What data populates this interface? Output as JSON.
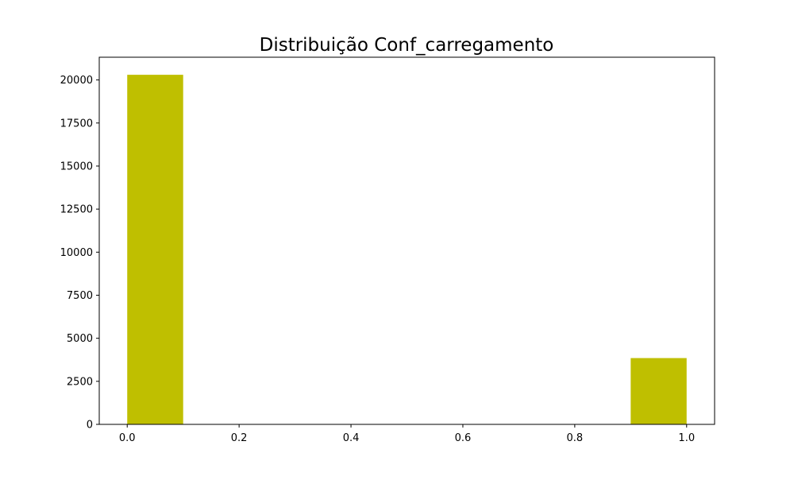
{
  "chart_data": {
    "type": "bar",
    "title": "Distribuição Conf_carregamento",
    "xlabel": "",
    "ylabel": "",
    "bars": [
      {
        "x_start": 0.0,
        "x_end": 0.1,
        "value": 20300
      },
      {
        "x_start": 0.1,
        "x_end": 0.2,
        "value": 0
      },
      {
        "x_start": 0.2,
        "x_end": 0.3,
        "value": 0
      },
      {
        "x_start": 0.3,
        "x_end": 0.4,
        "value": 0
      },
      {
        "x_start": 0.4,
        "x_end": 0.5,
        "value": 0
      },
      {
        "x_start": 0.5,
        "x_end": 0.6,
        "value": 0
      },
      {
        "x_start": 0.6,
        "x_end": 0.7,
        "value": 0
      },
      {
        "x_start": 0.7,
        "x_end": 0.8,
        "value": 0
      },
      {
        "x_start": 0.8,
        "x_end": 0.9,
        "value": 0
      },
      {
        "x_start": 0.9,
        "x_end": 1.0,
        "value": 3850
      }
    ],
    "xlim": [
      -0.05,
      1.05
    ],
    "ylim": [
      0,
      21320
    ],
    "x_ticks": [
      {
        "value": 0.0,
        "label": "0.0"
      },
      {
        "value": 0.2,
        "label": "0.2"
      },
      {
        "value": 0.4,
        "label": "0.4"
      },
      {
        "value": 0.6,
        "label": "0.6"
      },
      {
        "value": 0.8,
        "label": "0.8"
      },
      {
        "value": 1.0,
        "label": "1.0"
      }
    ],
    "y_ticks": [
      {
        "value": 0,
        "label": "0"
      },
      {
        "value": 2500,
        "label": "2500"
      },
      {
        "value": 5000,
        "label": "5000"
      },
      {
        "value": 7500,
        "label": "7500"
      },
      {
        "value": 10000,
        "label": "10000"
      },
      {
        "value": 12500,
        "label": "12500"
      },
      {
        "value": 15000,
        "label": "15000"
      },
      {
        "value": 17500,
        "label": "17500"
      },
      {
        "value": 20000,
        "label": "20000"
      }
    ],
    "bar_color": "#bfbf00",
    "grid": false,
    "legend": "none"
  }
}
